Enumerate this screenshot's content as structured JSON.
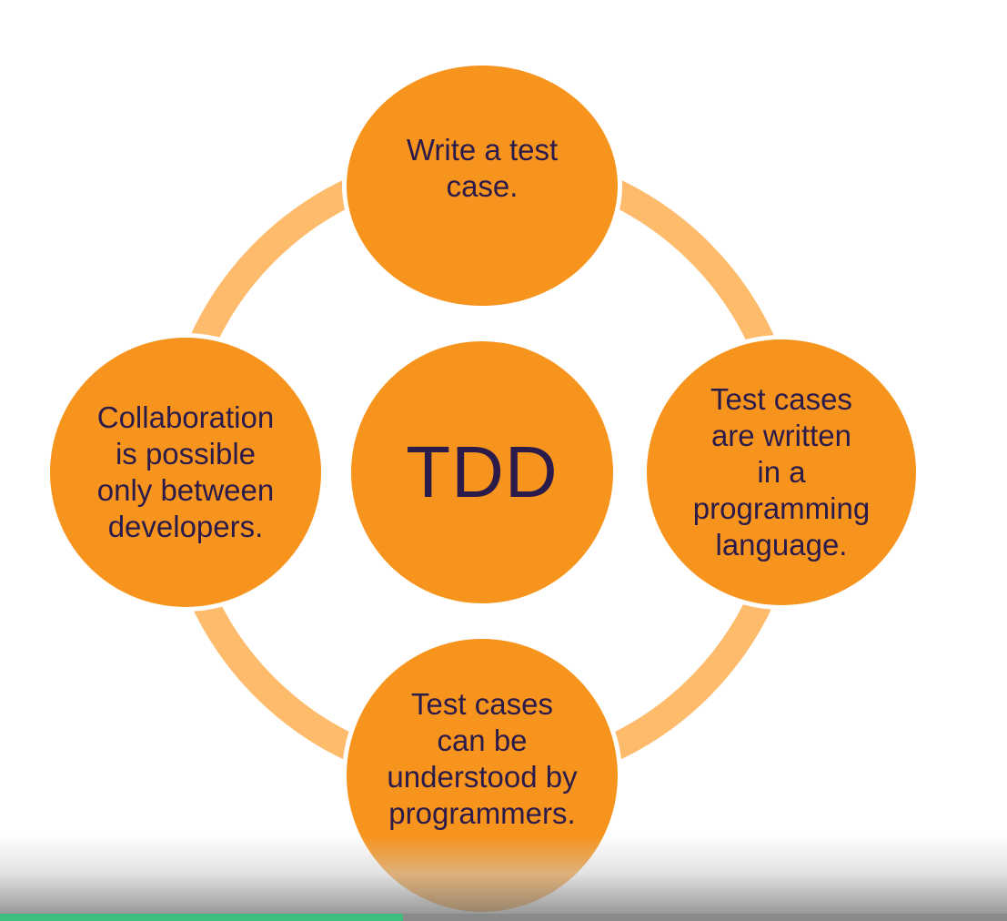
{
  "diagram": {
    "center": "TDD",
    "nodes": {
      "top": "Write a test\ncase.",
      "right": "Test cases\nare written\nin a\nprogramming\nlanguage.",
      "bottom": "Test cases\ncan be\nunderstood by\nprogrammers.",
      "left": "Collaboration\nis possible\nonly between\ndevelopers."
    },
    "colors": {
      "node_fill": "#f7941d",
      "ring": "#fdbb6b",
      "text": "#2b1b4a"
    }
  },
  "video_progress": {
    "played_fraction": 0.4
  }
}
